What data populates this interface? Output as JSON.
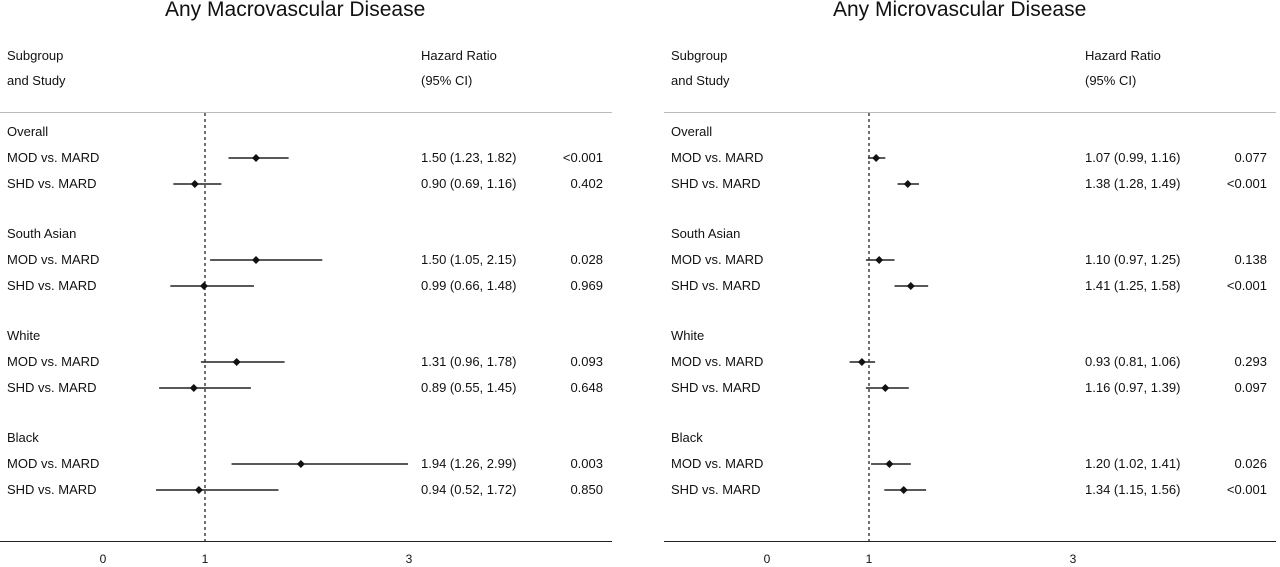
{
  "chart_data": [
    {
      "type": "forest",
      "title": "Any Macrovascular Disease",
      "header": {
        "col1_line1": "Subgroup",
        "col1_line2": "and Study",
        "col2_line1": "Hazard Ratio",
        "col2_line2": "(95% CI)"
      },
      "reference_line": 1,
      "xticks": [
        "0",
        "1",
        "3"
      ],
      "xtick_values": [
        0,
        1,
        3
      ],
      "groups": [
        {
          "name": "Overall",
          "rows": [
            {
              "label": "MOD vs. MARD",
              "hr": 1.5,
              "lo": 1.23,
              "hi": 1.82,
              "ci_text": "1.50 (1.23, 1.82)",
              "p": "<0.001"
            },
            {
              "label": "SHD vs. MARD",
              "hr": 0.9,
              "lo": 0.69,
              "hi": 1.16,
              "ci_text": "0.90 (0.69, 1.16)",
              "p": "0.402"
            }
          ]
        },
        {
          "name": "South Asian",
          "rows": [
            {
              "label": "MOD vs. MARD",
              "hr": 1.5,
              "lo": 1.05,
              "hi": 2.15,
              "ci_text": "1.50 (1.05, 2.15)",
              "p": "0.028"
            },
            {
              "label": "SHD vs. MARD",
              "hr": 0.99,
              "lo": 0.66,
              "hi": 1.48,
              "ci_text": "0.99 (0.66, 1.48)",
              "p": "0.969"
            }
          ]
        },
        {
          "name": "White",
          "rows": [
            {
              "label": "MOD vs. MARD",
              "hr": 1.31,
              "lo": 0.96,
              "hi": 1.78,
              "ci_text": "1.31 (0.96, 1.78)",
              "p": "0.093"
            },
            {
              "label": "SHD vs. MARD",
              "hr": 0.89,
              "lo": 0.55,
              "hi": 1.45,
              "ci_text": "0.89 (0.55, 1.45)",
              "p": "0.648"
            }
          ]
        },
        {
          "name": "Black",
          "rows": [
            {
              "label": "MOD vs. MARD",
              "hr": 1.94,
              "lo": 1.26,
              "hi": 2.99,
              "ci_text": "1.94 (1.26, 2.99)",
              "p": "0.003"
            },
            {
              "label": "SHD vs. MARD",
              "hr": 0.94,
              "lo": 0.52,
              "hi": 1.72,
              "ci_text": "0.94 (0.52, 1.72)",
              "p": "0.850"
            }
          ]
        }
      ]
    },
    {
      "type": "forest",
      "title": "Any Microvascular Disease",
      "header": {
        "col1_line1": "Subgroup",
        "col1_line2": "and Study",
        "col2_line1": "Hazard Ratio",
        "col2_line2": "(95% CI)"
      },
      "reference_line": 1,
      "xticks": [
        "0",
        "1",
        "3"
      ],
      "xtick_values": [
        0,
        1,
        3
      ],
      "groups": [
        {
          "name": "Overall",
          "rows": [
            {
              "label": "MOD vs. MARD",
              "hr": 1.07,
              "lo": 0.99,
              "hi": 1.16,
              "ci_text": "1.07 (0.99, 1.16)",
              "p": "0.077"
            },
            {
              "label": "SHD vs. MARD",
              "hr": 1.38,
              "lo": 1.28,
              "hi": 1.49,
              "ci_text": "1.38 (1.28, 1.49)",
              "p": "<0.001"
            }
          ]
        },
        {
          "name": "South Asian",
          "rows": [
            {
              "label": "MOD vs. MARD",
              "hr": 1.1,
              "lo": 0.97,
              "hi": 1.25,
              "ci_text": "1.10 (0.97, 1.25)",
              "p": "0.138"
            },
            {
              "label": "SHD vs. MARD",
              "hr": 1.41,
              "lo": 1.25,
              "hi": 1.58,
              "ci_text": "1.41 (1.25, 1.58)",
              "p": "<0.001"
            }
          ]
        },
        {
          "name": "White",
          "rows": [
            {
              "label": "MOD vs. MARD",
              "hr": 0.93,
              "lo": 0.81,
              "hi": 1.06,
              "ci_text": "0.93 (0.81, 1.06)",
              "p": "0.293"
            },
            {
              "label": "SHD vs. MARD",
              "hr": 1.16,
              "lo": 0.97,
              "hi": 1.39,
              "ci_text": "1.16 (0.97, 1.39)",
              "p": "0.097"
            }
          ]
        },
        {
          "name": "Black",
          "rows": [
            {
              "label": "MOD vs. MARD",
              "hr": 1.2,
              "lo": 1.02,
              "hi": 1.41,
              "ci_text": "1.20 (1.02, 1.41)",
              "p": "0.026"
            },
            {
              "label": "SHD vs. MARD",
              "hr": 1.34,
              "lo": 1.15,
              "hi": 1.56,
              "ci_text": "1.34 (1.15, 1.56)",
              "p": "<0.001"
            }
          ]
        }
      ]
    }
  ]
}
